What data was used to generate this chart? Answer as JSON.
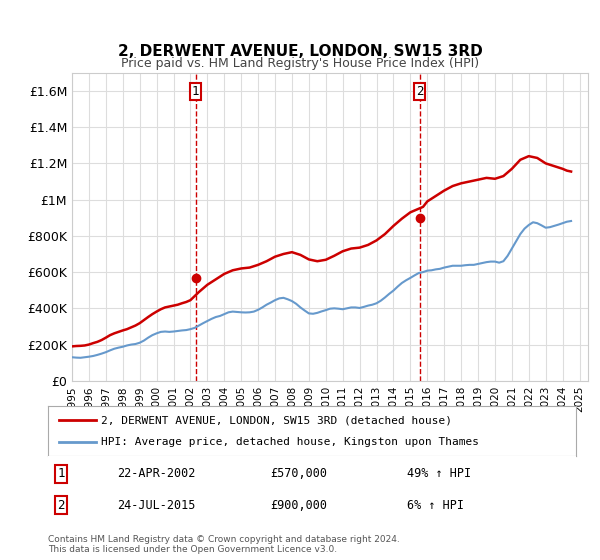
{
  "title": "2, DERWENT AVENUE, LONDON, SW15 3RD",
  "subtitle": "Price paid vs. HM Land Registry's House Price Index (HPI)",
  "ylabel": "",
  "ylim": [
    0,
    1700000
  ],
  "yticks": [
    0,
    200000,
    400000,
    600000,
    800000,
    1000000,
    1200000,
    1400000,
    1600000
  ],
  "ytick_labels": [
    "£0",
    "£200K",
    "£400K",
    "£600K",
    "£800K",
    "£1M",
    "£1.2M",
    "£1.4M",
    "£1.6M"
  ],
  "xlim_start": 1995.0,
  "xlim_end": 2025.5,
  "background_color": "#ffffff",
  "grid_color": "#dddddd",
  "red_line_color": "#cc0000",
  "blue_line_color": "#6699cc",
  "marker1_x": 2002.31,
  "marker1_y": 570000,
  "marker1_label": "1",
  "marker1_date": "22-APR-2002",
  "marker1_price": "£570,000",
  "marker1_hpi": "49% ↑ HPI",
  "marker2_x": 2015.56,
  "marker2_y": 900000,
  "marker2_label": "2",
  "marker2_date": "24-JUL-2015",
  "marker2_price": "£900,000",
  "marker2_hpi": "6% ↑ HPI",
  "legend_line1": "2, DERWENT AVENUE, LONDON, SW15 3RD (detached house)",
  "legend_line2": "HPI: Average price, detached house, Kingston upon Thames",
  "footer": "Contains HM Land Registry data © Crown copyright and database right 2024.\nThis data is licensed under the Open Government Licence v3.0.",
  "hpi_data_x": [
    1995.0,
    1995.25,
    1995.5,
    1995.75,
    1996.0,
    1996.25,
    1996.5,
    1996.75,
    1997.0,
    1997.25,
    1997.5,
    1997.75,
    1998.0,
    1998.25,
    1998.5,
    1998.75,
    1999.0,
    1999.25,
    1999.5,
    1999.75,
    2000.0,
    2000.25,
    2000.5,
    2000.75,
    2001.0,
    2001.25,
    2001.5,
    2001.75,
    2002.0,
    2002.25,
    2002.5,
    2002.75,
    2003.0,
    2003.25,
    2003.5,
    2003.75,
    2004.0,
    2004.25,
    2004.5,
    2004.75,
    2005.0,
    2005.25,
    2005.5,
    2005.75,
    2006.0,
    2006.25,
    2006.5,
    2006.75,
    2007.0,
    2007.25,
    2007.5,
    2007.75,
    2008.0,
    2008.25,
    2008.5,
    2008.75,
    2009.0,
    2009.25,
    2009.5,
    2009.75,
    2010.0,
    2010.25,
    2010.5,
    2010.75,
    2011.0,
    2011.25,
    2011.5,
    2011.75,
    2012.0,
    2012.25,
    2012.5,
    2012.75,
    2013.0,
    2013.25,
    2013.5,
    2013.75,
    2014.0,
    2014.25,
    2014.5,
    2014.75,
    2015.0,
    2015.25,
    2015.5,
    2015.75,
    2016.0,
    2016.25,
    2016.5,
    2016.75,
    2017.0,
    2017.25,
    2017.5,
    2017.75,
    2018.0,
    2018.25,
    2018.5,
    2018.75,
    2019.0,
    2019.25,
    2019.5,
    2019.75,
    2020.0,
    2020.25,
    2020.5,
    2020.75,
    2021.0,
    2021.25,
    2021.5,
    2021.75,
    2022.0,
    2022.25,
    2022.5,
    2022.75,
    2023.0,
    2023.25,
    2023.5,
    2023.75,
    2024.0,
    2024.25,
    2024.5
  ],
  "hpi_data_y": [
    130000,
    128000,
    127000,
    130000,
    133000,
    137000,
    143000,
    150000,
    158000,
    168000,
    177000,
    183000,
    188000,
    195000,
    200000,
    203000,
    210000,
    222000,
    238000,
    252000,
    262000,
    270000,
    272000,
    270000,
    272000,
    275000,
    278000,
    280000,
    285000,
    292000,
    305000,
    318000,
    330000,
    342000,
    352000,
    358000,
    368000,
    378000,
    382000,
    380000,
    378000,
    377000,
    378000,
    382000,
    392000,
    405000,
    420000,
    432000,
    445000,
    455000,
    458000,
    450000,
    440000,
    425000,
    405000,
    388000,
    372000,
    370000,
    375000,
    383000,
    390000,
    398000,
    400000,
    398000,
    395000,
    400000,
    405000,
    405000,
    402000,
    408000,
    415000,
    420000,
    428000,
    442000,
    460000,
    480000,
    498000,
    520000,
    540000,
    555000,
    568000,
    582000,
    595000,
    600000,
    608000,
    610000,
    615000,
    618000,
    625000,
    630000,
    635000,
    635000,
    635000,
    638000,
    640000,
    640000,
    645000,
    650000,
    655000,
    658000,
    658000,
    652000,
    660000,
    690000,
    730000,
    770000,
    810000,
    840000,
    860000,
    875000,
    870000,
    858000,
    845000,
    848000,
    855000,
    862000,
    870000,
    878000,
    882000
  ],
  "price_data_x": [
    1995.0,
    1995.25,
    1995.5,
    1995.75,
    1996.0,
    1996.25,
    1996.5,
    1996.75,
    1997.0,
    1997.25,
    1997.5,
    1997.75,
    1998.0,
    1998.25,
    1998.5,
    1998.75,
    1999.0,
    1999.25,
    1999.5,
    1999.75,
    2000.0,
    2000.25,
    2000.5,
    2000.75,
    2001.0,
    2001.25,
    2001.5,
    2001.75,
    2002.0,
    2002.5,
    2003.0,
    2003.5,
    2004.0,
    2004.5,
    2005.0,
    2005.5,
    2006.0,
    2006.5,
    2007.0,
    2007.5,
    2008.0,
    2008.5,
    2009.0,
    2009.5,
    2010.0,
    2010.5,
    2011.0,
    2011.5,
    2012.0,
    2012.5,
    2013.0,
    2013.5,
    2014.0,
    2014.5,
    2015.0,
    2015.75,
    2016.0,
    2016.5,
    2017.0,
    2017.5,
    2018.0,
    2018.5,
    2019.0,
    2019.5,
    2020.0,
    2020.5,
    2021.0,
    2021.5,
    2022.0,
    2022.5,
    2023.0,
    2023.5,
    2024.0,
    2024.25,
    2024.5
  ],
  "price_data_y": [
    190000,
    192000,
    193000,
    195000,
    200000,
    208000,
    215000,
    225000,
    238000,
    252000,
    262000,
    270000,
    278000,
    285000,
    295000,
    305000,
    318000,
    335000,
    352000,
    368000,
    382000,
    395000,
    405000,
    410000,
    415000,
    420000,
    428000,
    435000,
    445000,
    490000,
    530000,
    560000,
    590000,
    610000,
    620000,
    625000,
    640000,
    660000,
    685000,
    700000,
    710000,
    695000,
    670000,
    660000,
    668000,
    690000,
    715000,
    730000,
    735000,
    750000,
    775000,
    810000,
    855000,
    895000,
    930000,
    960000,
    990000,
    1020000,
    1050000,
    1075000,
    1090000,
    1100000,
    1110000,
    1120000,
    1115000,
    1130000,
    1170000,
    1220000,
    1240000,
    1230000,
    1200000,
    1185000,
    1170000,
    1160000,
    1155000
  ]
}
